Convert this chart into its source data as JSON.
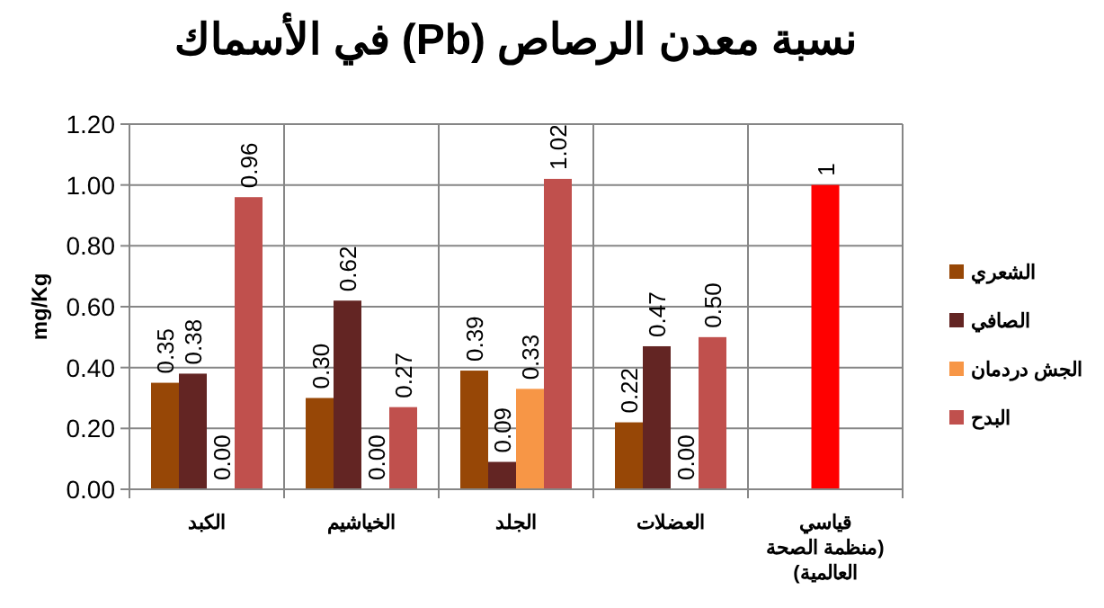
{
  "chart_data": {
    "type": "bar",
    "title": "نسبة معدن الرصاص (Pb) في الأسماك",
    "ylabel": "mg/Kg",
    "categories": [
      "الكبد",
      "الخياشيم",
      "الجلد",
      "العضلات",
      "قياسي\n(منظمة الصحة\nالعالمية)"
    ],
    "series": [
      {
        "name": "الشعري",
        "color": "#974706",
        "values": [
          0.35,
          0.3,
          0.39,
          0.22,
          null
        ],
        "value_labels": [
          "0.35",
          "0.30",
          "0.39",
          "0.22",
          null
        ]
      },
      {
        "name": "الصافي",
        "color": "#632523",
        "values": [
          0.38,
          0.62,
          0.09,
          0.47,
          null
        ],
        "value_labels": [
          "0.38",
          "0.62",
          "0.09",
          "0.47",
          null
        ]
      },
      {
        "name": "الجش دردمان",
        "color": "#f79646",
        "values": [
          0,
          0,
          0.33,
          0,
          null
        ],
        "value_labels": [
          "0.00",
          "0.00",
          "0.33",
          "0.00",
          null
        ]
      },
      {
        "name": "البدح",
        "color": "#c0504d",
        "values": [
          0.96,
          0.27,
          1.02,
          0.5,
          null
        ],
        "value_labels": [
          "0.96",
          "0.27",
          "1.02",
          "0.50",
          null
        ]
      },
      {
        "color": "#ff0000",
        "values": [
          null,
          null,
          null,
          null,
          1
        ],
        "value_labels": [
          null,
          null,
          null,
          null,
          "1"
        ]
      }
    ],
    "ylim": [
      0,
      1.2
    ],
    "yticks": [
      {
        "value": 0,
        "label": "0.00"
      },
      {
        "value": 0.2,
        "label": "0.20"
      },
      {
        "value": 0.4,
        "label": "0.40"
      },
      {
        "value": 0.6,
        "label": "0.60"
      },
      {
        "value": 0.8,
        "label": "0.80"
      },
      {
        "value": 1,
        "label": "1.00"
      },
      {
        "value": 1.2,
        "label": "1.20"
      }
    ],
    "grid": true,
    "legend": "right"
  }
}
